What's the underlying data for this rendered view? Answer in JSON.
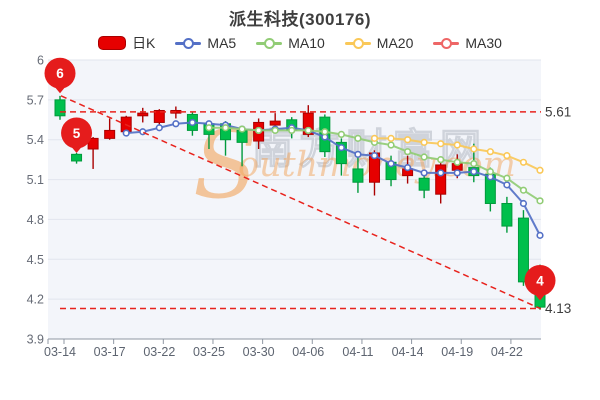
{
  "title": "派生科技(300176)",
  "legend": {
    "items": [
      {
        "label": "日K",
        "marker": "candle",
        "color": "#e60000",
        "border": "#aa0000"
      },
      {
        "label": "MA5",
        "marker": "line-circle",
        "color": "#5470c6"
      },
      {
        "label": "MA10",
        "marker": "line-circle",
        "color": "#91cc75"
      },
      {
        "label": "MA20",
        "marker": "line-circle",
        "color": "#fac858"
      },
      {
        "label": "MA30",
        "marker": "line-circle",
        "color": "#ee6666"
      }
    ]
  },
  "watermark": {
    "cjk_text": "南方财富网",
    "latin_initial": "S",
    "latin_rest": "outhmoney.com",
    "orange": "#f2a55c",
    "gray": "#c9ced6"
  },
  "chart_data": {
    "type": "candlestick",
    "title": "派生科技(300176)",
    "ylim": [
      3.9,
      6.0
    ],
    "y_tick_labels": [
      "6",
      "5.7",
      "5.4",
      "5.1",
      "4.8",
      "4.5",
      "4.2",
      "3.9"
    ],
    "x_tick_labels": [
      "03-14",
      "03-17",
      "03-22",
      "03-25",
      "03-30",
      "04-06",
      "04-11",
      "04-14",
      "04-19",
      "04-22"
    ],
    "x_label_every": 3,
    "grid": true,
    "legend_position": "top",
    "colors": {
      "up": "#e60000",
      "up_border": "#aa0000",
      "down": "#00bf4c",
      "down_border": "#009a3c"
    },
    "candles": [
      {
        "o": 5.7,
        "c": 5.58,
        "l": 5.55,
        "h": 5.73
      },
      {
        "o": 5.29,
        "c": 5.24,
        "l": 5.22,
        "h": 5.3
      },
      {
        "o": 5.33,
        "c": 5.41,
        "l": 5.18,
        "h": 5.42
      },
      {
        "o": 5.41,
        "c": 5.47,
        "l": 5.4,
        "h": 5.56
      },
      {
        "o": 5.46,
        "c": 5.57,
        "l": 5.43,
        "h": 5.58
      },
      {
        "o": 5.58,
        "c": 5.6,
        "l": 5.53,
        "h": 5.64
      },
      {
        "o": 5.53,
        "c": 5.62,
        "l": 5.5,
        "h": 5.63
      },
      {
        "o": 5.6,
        "c": 5.62,
        "l": 5.56,
        "h": 5.65
      },
      {
        "o": 5.59,
        "c": 5.47,
        "l": 5.43,
        "h": 5.61
      },
      {
        "o": 5.52,
        "c": 5.44,
        "l": 5.33,
        "h": 5.54
      },
      {
        "o": 5.52,
        "c": 5.4,
        "l": 5.28,
        "h": 5.54
      },
      {
        "o": 5.47,
        "c": 5.38,
        "l": 5.2,
        "h": 5.49
      },
      {
        "o": 5.39,
        "c": 5.53,
        "l": 5.33,
        "h": 5.56
      },
      {
        "o": 5.51,
        "c": 5.54,
        "l": 5.47,
        "h": 5.6
      },
      {
        "o": 5.55,
        "c": 5.47,
        "l": 5.41,
        "h": 5.57
      },
      {
        "o": 5.44,
        "c": 5.6,
        "l": 5.42,
        "h": 5.66
      },
      {
        "o": 5.57,
        "c": 5.31,
        "l": 5.27,
        "h": 5.59
      },
      {
        "o": 5.38,
        "c": 5.22,
        "l": 5.13,
        "h": 5.41
      },
      {
        "o": 5.18,
        "c": 5.08,
        "l": 5.0,
        "h": 5.28
      },
      {
        "o": 5.08,
        "c": 5.3,
        "l": 4.98,
        "h": 5.32
      },
      {
        "o": 5.23,
        "c": 5.1,
        "l": 5.05,
        "h": 5.28
      },
      {
        "o": 5.13,
        "c": 5.18,
        "l": 5.07,
        "h": 5.28
      },
      {
        "o": 5.11,
        "c": 5.02,
        "l": 4.96,
        "h": 5.17
      },
      {
        "o": 4.99,
        "c": 5.21,
        "l": 4.92,
        "h": 5.23
      },
      {
        "o": 5.17,
        "c": 5.22,
        "l": 5.11,
        "h": 5.29
      },
      {
        "o": 5.19,
        "c": 5.13,
        "l": 5.08,
        "h": 5.37
      },
      {
        "o": 5.14,
        "c": 4.92,
        "l": 4.86,
        "h": 5.19
      },
      {
        "o": 4.92,
        "c": 4.75,
        "l": 4.7,
        "h": 4.97
      },
      {
        "o": 4.81,
        "c": 4.33,
        "l": 4.3,
        "h": 4.87
      },
      {
        "o": 4.3,
        "c": 4.14,
        "l": 4.12,
        "h": 4.46
      }
    ],
    "series": [
      {
        "name": "MA5",
        "color": "#5470c6",
        "start_index": 4,
        "values": [
          5.45,
          5.46,
          5.49,
          5.52,
          5.53,
          5.52,
          5.51,
          5.48,
          5.47,
          5.48,
          5.49,
          5.47,
          5.42,
          5.34,
          5.29,
          5.28,
          5.22,
          5.19,
          5.15,
          5.15,
          5.15,
          5.16,
          5.12,
          5.06,
          4.92,
          4.68
        ]
      },
      {
        "name": "MA10",
        "color": "#91cc75",
        "start_index": 9,
        "values": [
          5.49,
          5.49,
          5.48,
          5.47,
          5.47,
          5.47,
          5.47,
          5.46,
          5.44,
          5.41,
          5.38,
          5.36,
          5.31,
          5.27,
          5.25,
          5.23,
          5.22,
          5.16,
          5.11,
          5.02,
          4.94
        ]
      },
      {
        "name": "MA20",
        "color": "#fac858",
        "start_index": 19,
        "values": [
          5.41,
          5.41,
          5.4,
          5.38,
          5.37,
          5.36,
          5.33,
          5.31,
          5.28,
          5.23,
          5.17
        ]
      },
      {
        "name": "MA30",
        "color": "#ee6666",
        "start_index": 29,
        "values": []
      }
    ],
    "annotations": {
      "dashed_color": "#e8231d",
      "upper_dashed_line": {
        "value": 5.61,
        "label": "5.61"
      },
      "lower_dashed_line": {
        "value": 4.13,
        "label": "4.13"
      },
      "trend_line": {
        "x1_index": 0,
        "y1_value": 5.73,
        "x2_index": 29,
        "y2_value": 4.13
      },
      "balloon_color": "#e51c1c",
      "balloons": [
        {
          "label": "6",
          "x_index": 0,
          "anchor_value": 5.75
        },
        {
          "label": "5",
          "x_index": 1,
          "anchor_value": 5.3
        },
        {
          "label": "4",
          "x_index": 29,
          "anchor_value": 4.19
        }
      ]
    }
  }
}
